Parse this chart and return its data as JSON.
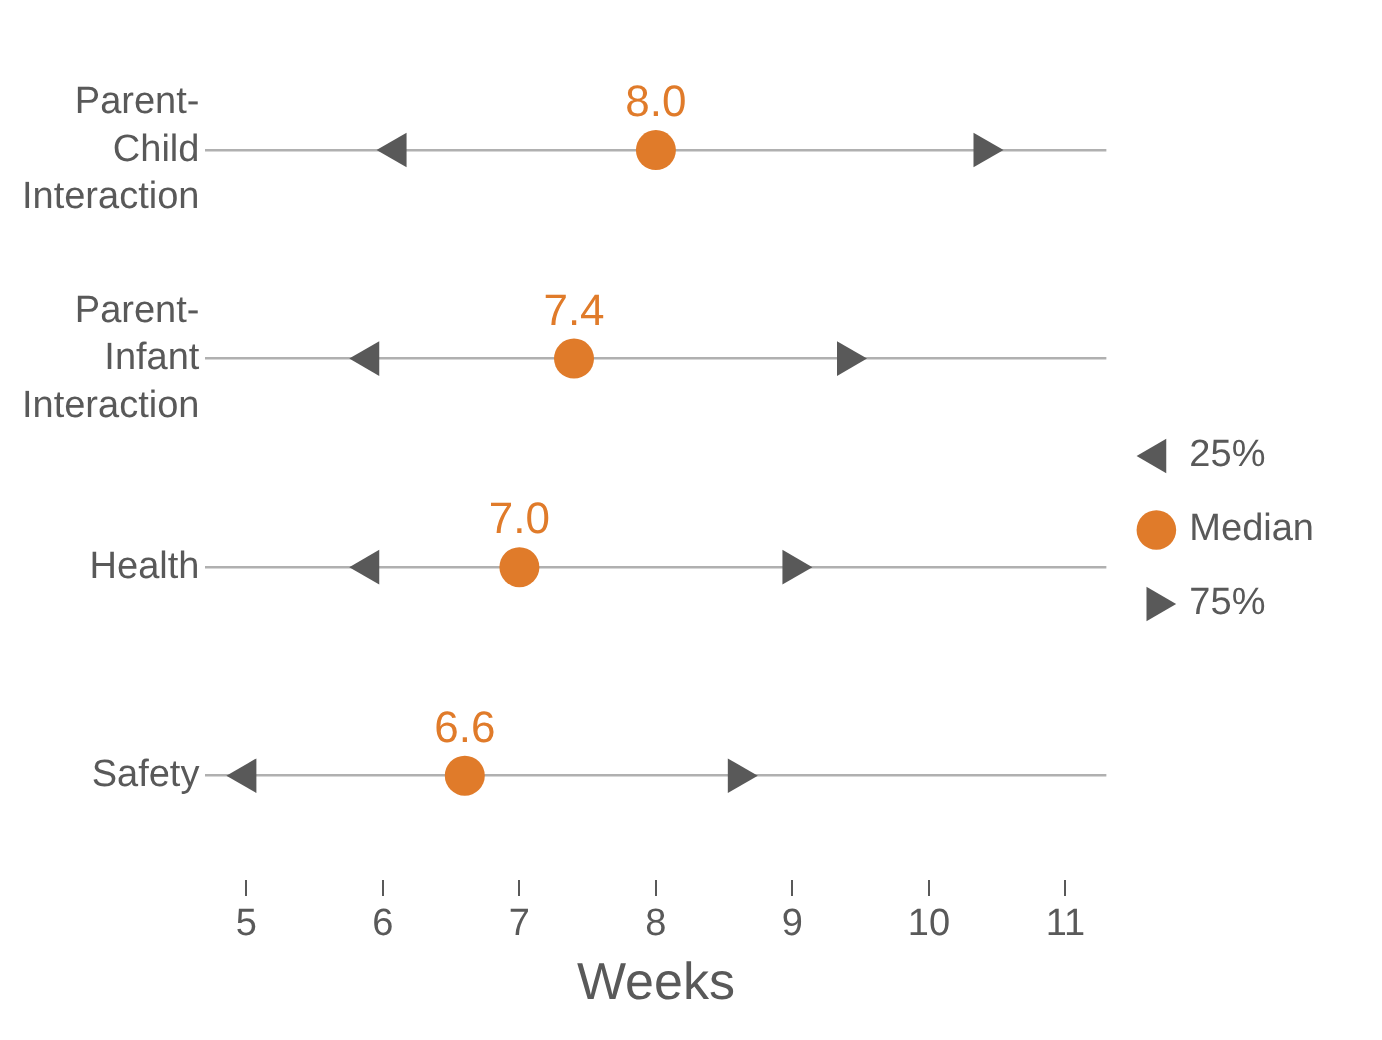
{
  "chart_data": {
    "type": "scatter",
    "orientation": "horizontal",
    "categories": [
      "Parent-Child Interaction",
      "Parent-Infant Interaction",
      "Health",
      "Safety"
    ],
    "xlabel": "Weeks",
    "xlim": [
      4.7,
      11.3
    ],
    "xticks": [
      5,
      6,
      7,
      8,
      9,
      10,
      11
    ],
    "grid": "y",
    "legend": "right",
    "series": [
      {
        "name": "25%",
        "color": "#595959",
        "marker": "triangle-left",
        "values": [
          6.1,
          5.9,
          5.9,
          5.0
        ]
      },
      {
        "name": "Median",
        "color": "#e07b2a",
        "marker": "circle",
        "values": [
          8.0,
          7.4,
          7.0,
          6.6
        ],
        "value_labels": [
          "8.0",
          "7.4",
          "7.0",
          "6.6"
        ]
      },
      {
        "name": "75%",
        "color": "#595959",
        "marker": "triangle-right",
        "values": [
          10.4,
          9.4,
          9.0,
          8.6
        ]
      }
    ]
  }
}
